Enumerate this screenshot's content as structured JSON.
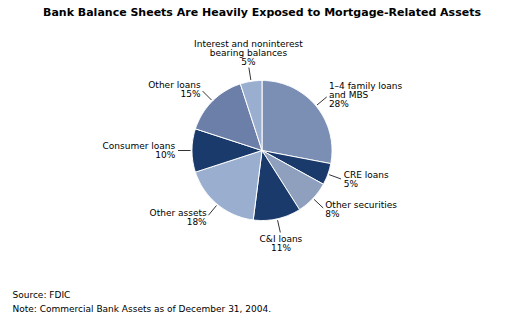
{
  "chart_data": {
    "type": "pie",
    "title": "Bank Balance Sheets Are Heavily Exposed to Mortgage-Related Assets",
    "categories": [
      "1–4 family loans\nand MBS",
      "CRE loans",
      "Other securities",
      "C&I loans",
      "Other assets",
      "Consumer loans",
      "Other loans",
      "Interest and noninterest\nbearing balances"
    ],
    "values": [
      28,
      5,
      8,
      11,
      18,
      10,
      15,
      5
    ],
    "value_labels": [
      "28%",
      "5%",
      "8%",
      "11%",
      "18%",
      "10%",
      "15%",
      "5%"
    ],
    "data_labels": true,
    "colors": [
      "#7b8fb5",
      "#1a3a6b",
      "#8fa0bf",
      "#1a3a6b",
      "#9aaecf",
      "#1a3a6b",
      "#6b7fa8",
      "#9aaecf"
    ],
    "annotations": [
      "Source: FDIC",
      "Note: Commercial Bank Assets as of December 31, 2004."
    ]
  }
}
